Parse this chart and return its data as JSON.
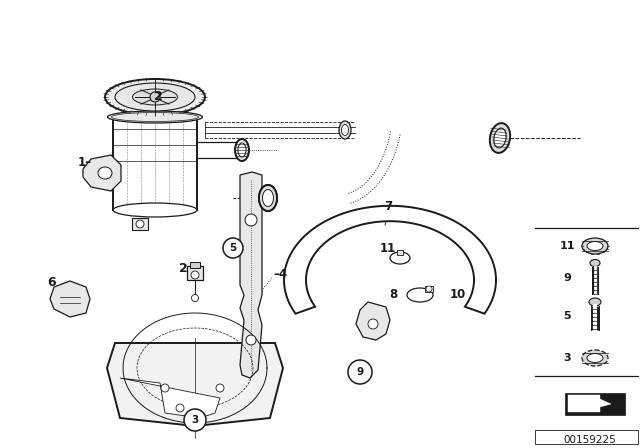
{
  "bg_color": "#ffffff",
  "diagram_id": "00159225",
  "fig_width": 6.4,
  "fig_height": 4.48,
  "dpi": 100,
  "lc": "#1a1a1a"
}
